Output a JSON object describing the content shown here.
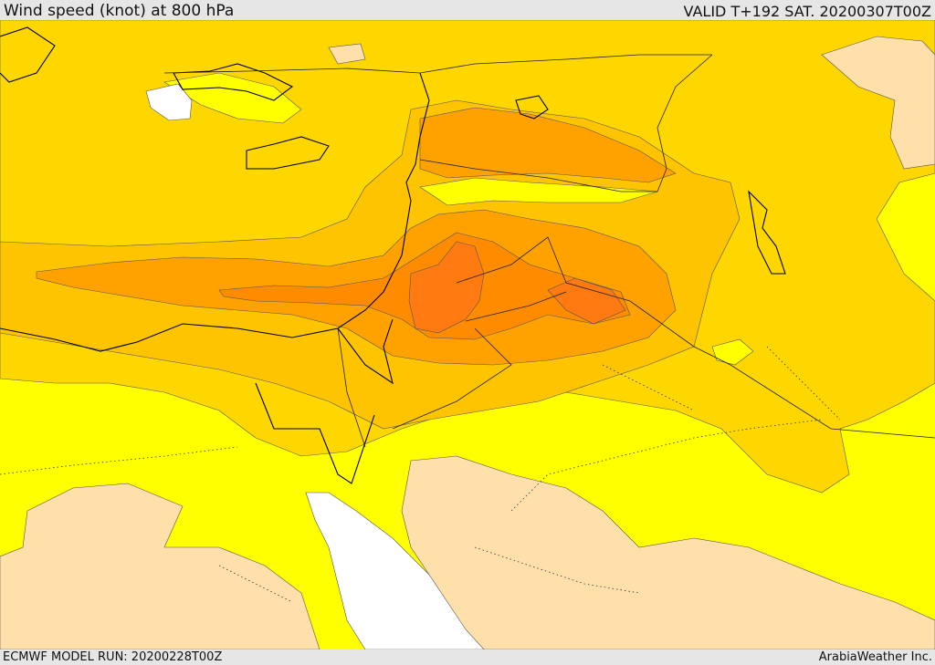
{
  "header": {
    "title": "Wind speed (knot) at 800 hPa",
    "valid_time": "VALID T+192 SAT. 20200307T00Z"
  },
  "footer": {
    "model_run": "ECMWF MODEL RUN: 20200228T00Z",
    "provider": "ArabiaWeather Inc."
  },
  "colors": {
    "calm_land": "#ffdfaa",
    "yellow": "#ffff00",
    "gold": "#ffd700",
    "light_orange": "#ffc400",
    "orange": "#ffa200",
    "dark_orange": "#ff8c00",
    "deep_orange": "#ff7a10",
    "sea_white": "#ffffff"
  }
}
